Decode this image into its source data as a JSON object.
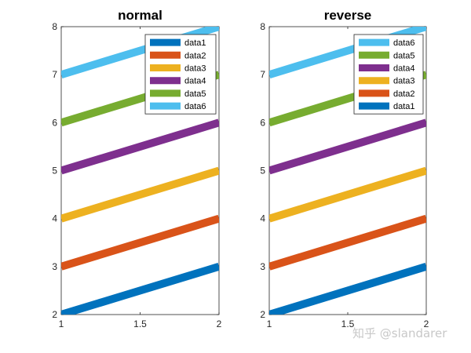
{
  "chart_data": [
    {
      "type": "line",
      "title": "normal",
      "x": [
        1,
        2
      ],
      "xlim": [
        1,
        2
      ],
      "ylim": [
        2,
        8
      ],
      "xticks": [
        "1",
        "1.5",
        "2"
      ],
      "yticks": [
        "2",
        "3",
        "4",
        "5",
        "6",
        "7",
        "8"
      ],
      "xlabel": "",
      "ylabel": "",
      "grid": false,
      "legend_position": "top-right",
      "legend_order": [
        "data1",
        "data2",
        "data3",
        "data4",
        "data5",
        "data6"
      ],
      "series": [
        {
          "name": "data1",
          "values": [
            2,
            3
          ],
          "color": "#0072BD"
        },
        {
          "name": "data2",
          "values": [
            3,
            4
          ],
          "color": "#D95319"
        },
        {
          "name": "data3",
          "values": [
            4,
            5
          ],
          "color": "#EDB120"
        },
        {
          "name": "data4",
          "values": [
            5,
            6
          ],
          "color": "#7E2F8E"
        },
        {
          "name": "data5",
          "values": [
            6,
            7
          ],
          "color": "#77AC30"
        },
        {
          "name": "data6",
          "values": [
            7,
            8
          ],
          "color": "#4DBEEE"
        }
      ]
    },
    {
      "type": "line",
      "title": "reverse",
      "x": [
        1,
        2
      ],
      "xlim": [
        1,
        2
      ],
      "ylim": [
        2,
        8
      ],
      "xticks": [
        "1",
        "1.5",
        "2"
      ],
      "yticks": [
        "2",
        "3",
        "4",
        "5",
        "6",
        "7",
        "8"
      ],
      "xlabel": "",
      "ylabel": "",
      "grid": false,
      "legend_position": "top-right",
      "legend_order": [
        "data6",
        "data5",
        "data4",
        "data3",
        "data2",
        "data1"
      ],
      "series": [
        {
          "name": "data1",
          "values": [
            2,
            3
          ],
          "color": "#0072BD"
        },
        {
          "name": "data2",
          "values": [
            3,
            4
          ],
          "color": "#D95319"
        },
        {
          "name": "data3",
          "values": [
            4,
            5
          ],
          "color": "#EDB120"
        },
        {
          "name": "data4",
          "values": [
            5,
            6
          ],
          "color": "#7E2F8E"
        },
        {
          "name": "data5",
          "values": [
            6,
            7
          ],
          "color": "#77AC30"
        },
        {
          "name": "data6",
          "values": [
            7,
            8
          ],
          "color": "#4DBEEE"
        }
      ]
    }
  ],
  "watermark": "知乎 @slandarer"
}
